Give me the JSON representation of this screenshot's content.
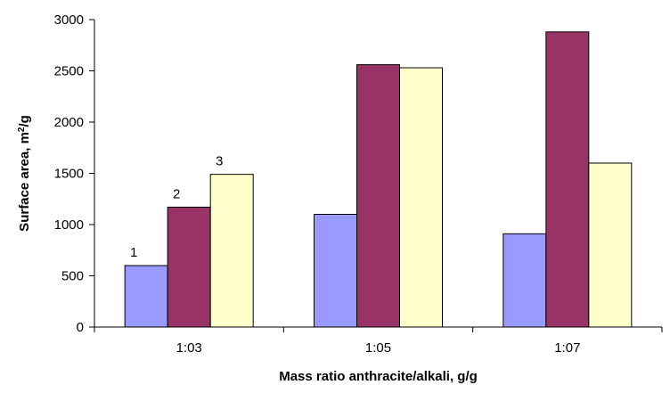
{
  "chart_data": {
    "type": "bar",
    "title": "",
    "xlabel": "Mass ratio anthracite/alkali, g/g",
    "ylabel_main": "Surface area, m",
    "ylabel_sup": "2",
    "ylabel_tail": "/g",
    "categories": [
      "1:03",
      "1:05",
      "1:07"
    ],
    "series": [
      {
        "values": [
          600,
          1100,
          910
        ],
        "color": "#9999ff",
        "label": "1"
      },
      {
        "values": [
          1170,
          2560,
          2880
        ],
        "color": "#993366",
        "label": "2"
      },
      {
        "values": [
          1490,
          2530,
          1600
        ],
        "color": "#ffffcc",
        "label": "3"
      }
    ],
    "ylim": [
      0,
      3000
    ],
    "yticks": [
      0,
      500,
      1000,
      1500,
      2000,
      2500,
      3000
    ],
    "grid": false,
    "legend": "none"
  }
}
